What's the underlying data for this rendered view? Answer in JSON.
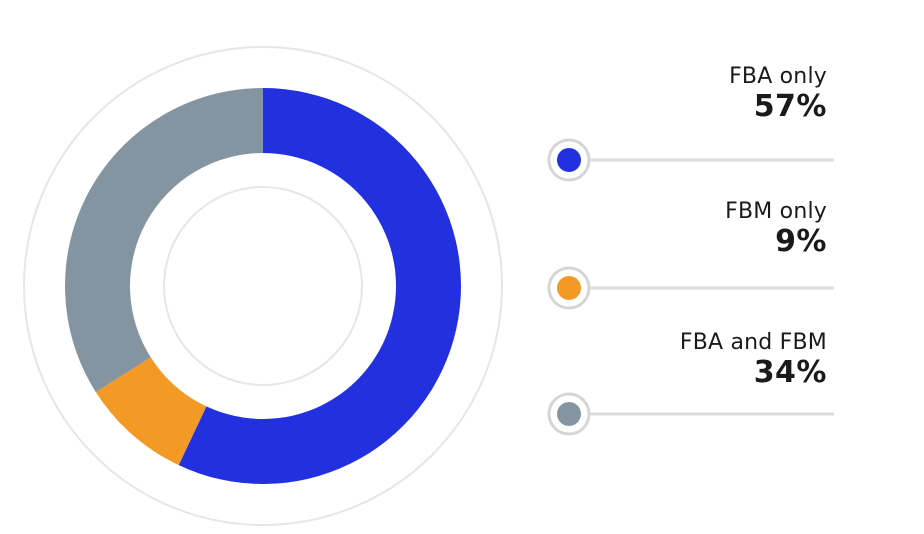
{
  "chart_data": {
    "type": "pie",
    "style": "donut",
    "categories": [
      "FBA only",
      "FBM only",
      "FBA and FBM"
    ],
    "values": [
      57,
      9,
      34
    ],
    "value_labels": [
      "57%",
      "9%",
      "34%"
    ],
    "colors": [
      "#2330e0",
      "#f39a26",
      "#8495a1"
    ],
    "legend_placement": "right"
  }
}
